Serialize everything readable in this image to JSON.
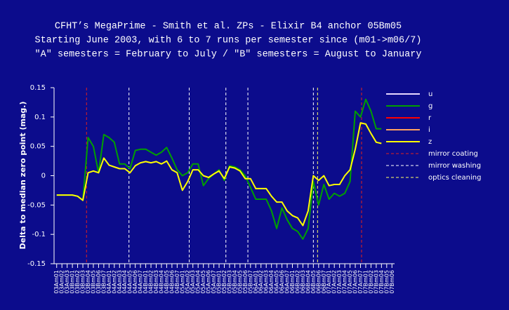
{
  "chart_data": {
    "type": "line",
    "title": [
      "CFHT’s MegaPrime - Smith et al. ZPs - Elixir B4 anchor 05Bm05",
      "Starting June 2003, with 6 to 7 runs per semester since (m01->m06/7)",
      "\"A\" semesters = February to July / \"B\" semesters = August to January"
    ],
    "y_label": "Delta to median zero point (mag.)",
    "categories": [
      "03Am01",
      "03Am02",
      "03Am03",
      "03Bm01",
      "03Bm02",
      "03Bm03",
      "03Bm04",
      "03Bm05",
      "03Bm06",
      "03Bm07",
      "04Am01",
      "04Am02",
      "04Am03",
      "04Am04",
      "04Am05",
      "04Am06",
      "04Am07",
      "04Bm01",
      "04Bm02",
      "04Bm03",
      "04Bm04",
      "04Bm05",
      "04Bm06",
      "04Bm07",
      "05Am01",
      "05Am02",
      "05Am03",
      "05Am04",
      "05Am05",
      "05Am06",
      "05Am07",
      "05Bm01",
      "05Bm02",
      "05Bm03",
      "05Bm04",
      "05Bm05",
      "05Bm06",
      "05Bm07",
      "06Am01",
      "06Am02",
      "06Am03",
      "06Am04",
      "06Am05",
      "06Am06",
      "06Am07",
      "06Bm01",
      "06Bm02",
      "06Bm03",
      "06Bm04",
      "06Bm05",
      "06Bm06",
      "06Bm07",
      "07Am01",
      "07Am02",
      "07Am03",
      "07Am04",
      "07Am05",
      "07Am06",
      "07Am07",
      "07Bm01",
      "07Bm02",
      "07Bm03",
      "07Bm04",
      "07Bm05",
      "07Bm06"
    ],
    "series": [
      {
        "name": "u",
        "color": "#e8d8ff",
        "values": [
          null,
          null,
          null,
          null,
          null,
          null,
          null,
          null,
          null,
          null,
          null,
          null,
          null,
          null,
          null,
          null,
          null,
          null,
          null,
          null,
          null,
          null,
          null,
          null,
          null,
          null,
          null,
          null,
          null,
          null,
          null,
          null,
          null,
          null,
          null,
          null,
          null,
          null,
          null,
          null,
          null,
          null,
          null,
          null,
          null,
          null,
          null,
          null,
          null,
          null,
          null,
          null,
          null,
          null,
          null,
          null,
          null,
          null,
          null,
          null,
          null,
          null,
          null,
          null,
          null
        ]
      },
      {
        "name": "g",
        "color": "#00a000",
        "values": [
          -0.033,
          -0.033,
          -0.033,
          -0.033,
          -0.035,
          -0.042,
          0.065,
          0.05,
          0.005,
          0.07,
          0.065,
          0.057,
          0.02,
          0.02,
          0.012,
          0.043,
          0.045,
          0.045,
          0.04,
          0.035,
          0.04,
          0.048,
          0.03,
          0.01,
          0,
          0.005,
          0.02,
          0.02,
          -0.017,
          -0.005,
          0.003,
          0.01,
          -0.008,
          0.017,
          0.015,
          0.01,
          0,
          -0.02,
          -0.04,
          -0.04,
          -0.04,
          -0.06,
          -0.09,
          -0.055,
          -0.075,
          -0.09,
          -0.095,
          -0.108,
          -0.09,
          -0.01,
          -0.05,
          -0.015,
          -0.04,
          -0.03,
          -0.035,
          -0.03,
          -0.01,
          0.11,
          0.1,
          0.13,
          0.11,
          0.08,
          0.08,
          null,
          null
        ]
      },
      {
        "name": "r",
        "color": "#ff0000",
        "values": [
          null,
          null,
          null,
          null,
          null,
          null,
          null,
          null,
          null,
          null,
          null,
          null,
          null,
          null,
          null,
          null,
          null,
          null,
          null,
          null,
          null,
          null,
          null,
          null,
          null,
          null,
          null,
          null,
          null,
          null,
          null,
          null,
          null,
          null,
          null,
          null,
          null,
          null,
          null,
          null,
          null,
          null,
          null,
          null,
          null,
          null,
          null,
          null,
          null,
          null,
          null,
          null,
          null,
          null,
          null,
          null,
          null,
          null,
          null,
          null,
          null,
          null,
          null,
          null,
          null
        ]
      },
      {
        "name": "i",
        "color": "#ffa060",
        "values": [
          null,
          null,
          null,
          null,
          null,
          null,
          null,
          null,
          null,
          null,
          null,
          null,
          null,
          null,
          null,
          null,
          null,
          null,
          null,
          null,
          null,
          null,
          null,
          null,
          null,
          null,
          null,
          null,
          null,
          null,
          null,
          null,
          null,
          null,
          null,
          null,
          null,
          null,
          null,
          null,
          null,
          null,
          null,
          null,
          null,
          null,
          null,
          null,
          null,
          null,
          null,
          null,
          null,
          null,
          null,
          null,
          null,
          null,
          null,
          null,
          null,
          null,
          null,
          null,
          null
        ]
      },
      {
        "name": "z",
        "color": "#ffff00",
        "values": [
          -0.033,
          -0.033,
          -0.033,
          -0.033,
          -0.035,
          -0.042,
          0.005,
          0.008,
          0.005,
          0.03,
          0.018,
          0.015,
          0.012,
          0.012,
          0.005,
          0.017,
          0.022,
          0.024,
          0.022,
          0.024,
          0.02,
          0.025,
          0.01,
          0.005,
          -0.025,
          -0.01,
          0.01,
          0.01,
          0,
          -0.003,
          0.003,
          0.008,
          -0.005,
          0.015,
          0.013,
          0.008,
          -0.005,
          -0.005,
          -0.022,
          -0.022,
          -0.022,
          -0.035,
          -0.045,
          -0.045,
          -0.06,
          -0.068,
          -0.072,
          -0.085,
          -0.06,
          0,
          -0.008,
          0,
          -0.017,
          -0.015,
          -0.015,
          0,
          0.01,
          0.045,
          0.09,
          0.088,
          0.072,
          0.057,
          0.055,
          null,
          null
        ]
      }
    ],
    "events": [
      {
        "name": "mirror coating",
        "color": "#e02020",
        "x": [
          5.7,
          58.2
        ]
      },
      {
        "name": "mirror washing",
        "color": "#ffffff",
        "x": [
          13.8,
          25.3,
          32.3,
          36.5,
          49
        ]
      },
      {
        "name": "optics cleaning",
        "color": "#ffff66",
        "x": [
          49.8
        ]
      }
    ],
    "ylim": [
      -0.15,
      0.15
    ],
    "yticks": [
      -0.15,
      -0.1,
      -0.05,
      0,
      0.05,
      0.1,
      0.15
    ]
  }
}
